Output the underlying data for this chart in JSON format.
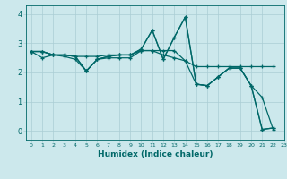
{
  "title": "",
  "xlabel": "Humidex (Indice chaleur)",
  "bg_color": "#cce8ec",
  "grid_color": "#aacdd4",
  "line_color": "#006868",
  "xlim": [
    -0.5,
    23
  ],
  "ylim": [
    -0.3,
    4.3
  ],
  "series": [
    {
      "x": [
        0,
        1,
        2,
        3,
        4,
        5,
        6,
        7,
        8,
        9,
        10,
        11,
        12,
        13,
        14,
        15,
        16,
        17,
        18,
        19,
        20,
        21,
        22
      ],
      "y": [
        2.72,
        2.72,
        2.6,
        2.6,
        2.55,
        2.55,
        2.55,
        2.6,
        2.6,
        2.6,
        2.75,
        2.75,
        2.75,
        2.75,
        2.4,
        2.2,
        2.2,
        2.2,
        2.2,
        2.2,
        2.2,
        2.2,
        2.2
      ]
    },
    {
      "x": [
        0,
        1,
        2,
        3,
        4,
        5,
        6,
        7,
        8,
        9,
        10,
        11,
        12,
        13,
        14,
        15,
        16,
        17,
        18,
        19,
        20,
        21,
        22
      ],
      "y": [
        2.72,
        2.72,
        2.6,
        2.6,
        2.55,
        2.05,
        2.45,
        2.55,
        2.6,
        2.6,
        2.8,
        3.45,
        2.45,
        3.2,
        3.9,
        1.6,
        1.55,
        1.85,
        2.15,
        2.15,
        1.55,
        1.15,
        0.05
      ]
    },
    {
      "x": [
        0,
        1,
        2,
        3,
        4,
        5,
        6,
        7,
        8,
        9,
        10,
        11,
        12,
        13,
        14,
        15,
        16,
        17,
        18,
        19,
        20,
        21,
        22
      ],
      "y": [
        2.72,
        2.72,
        2.6,
        2.6,
        2.55,
        2.05,
        2.45,
        2.55,
        2.6,
        2.6,
        2.8,
        3.45,
        2.45,
        3.2,
        3.9,
        1.6,
        1.55,
        1.85,
        2.15,
        2.15,
        1.55,
        0.05,
        0.1
      ]
    },
    {
      "x": [
        0,
        1,
        2,
        3,
        4,
        5,
        6,
        7,
        8,
        9,
        10,
        11,
        12,
        13,
        14,
        15,
        16,
        17,
        18,
        19,
        20,
        21,
        22
      ],
      "y": [
        2.72,
        2.5,
        2.6,
        2.55,
        2.45,
        2.05,
        2.45,
        2.5,
        2.5,
        2.5,
        2.75,
        2.75,
        2.6,
        2.5,
        2.4,
        1.6,
        1.55,
        1.85,
        2.15,
        2.15,
        1.55,
        0.05,
        0.1
      ]
    }
  ],
  "xticks": [
    0,
    1,
    2,
    3,
    4,
    5,
    6,
    7,
    8,
    9,
    10,
    11,
    12,
    13,
    14,
    15,
    16,
    17,
    18,
    19,
    20,
    21,
    22,
    23
  ],
  "yticks": [
    0,
    1,
    2,
    3,
    4
  ],
  "xtick_fontsize": 4.5,
  "ytick_fontsize": 6,
  "xlabel_fontsize": 6.5,
  "linewidth": 0.9,
  "markersize": 3.0,
  "markeredgewidth": 0.9
}
